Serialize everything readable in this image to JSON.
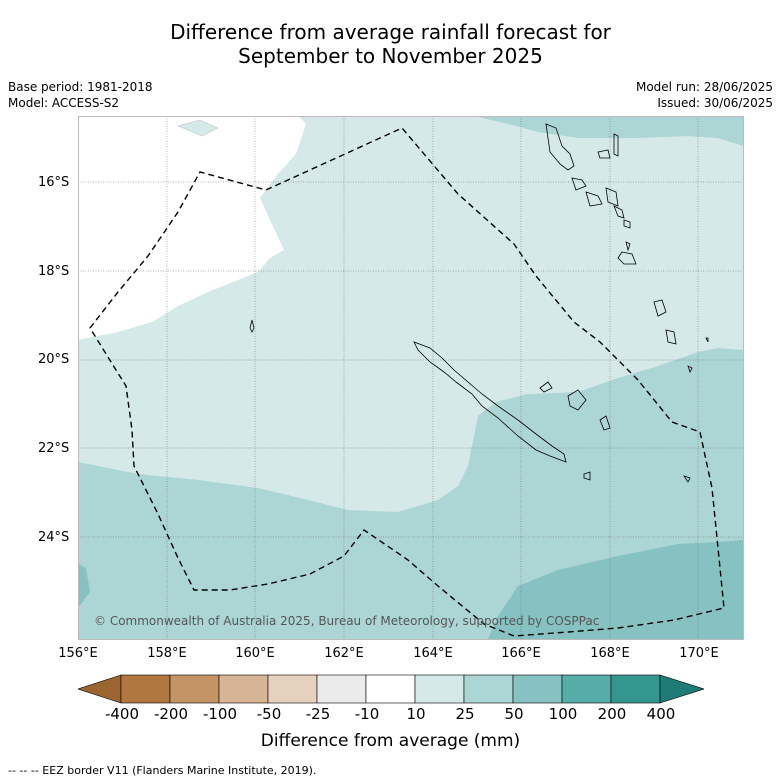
{
  "title_line1": "Difference from average rainfall forecast for",
  "title_line2": "September to November 2025",
  "base_period": "Base period: 1981-2018",
  "model": "Model: ACCESS-S2",
  "model_run": "Model run: 28/06/2025",
  "issued": "Issued: 30/06/2025",
  "copyright": "© Commonwealth of Australia 2025, Bureau of Meteorology, supported by COSPPac",
  "lat_labels": [
    "16°S",
    "18°S",
    "20°S",
    "22°S",
    "24°S"
  ],
  "lon_labels": [
    "156°E",
    "158°E",
    "160°E",
    "162°E",
    "164°E",
    "166°E",
    "168°E",
    "170°E"
  ],
  "colorbar": {
    "title": "Difference from average (mm)",
    "tick_labels": [
      "-400",
      "-200",
      "-100",
      "-50",
      "-25",
      "-10",
      "10",
      "25",
      "50",
      "100",
      "200",
      "400"
    ],
    "colors": [
      "#9b6530",
      "#b07840",
      "#c49466",
      "#d6b496",
      "#e6d0be",
      "#ebebeb",
      "#ffffff",
      "#d4e9e8",
      "#acd6d5",
      "#86c2c1",
      "#56aca9",
      "#34968f",
      "#1f7b76"
    ]
  },
  "footer": "-- -- -- EEZ border V11 (Flanders Marine Institute, 2019)."
}
